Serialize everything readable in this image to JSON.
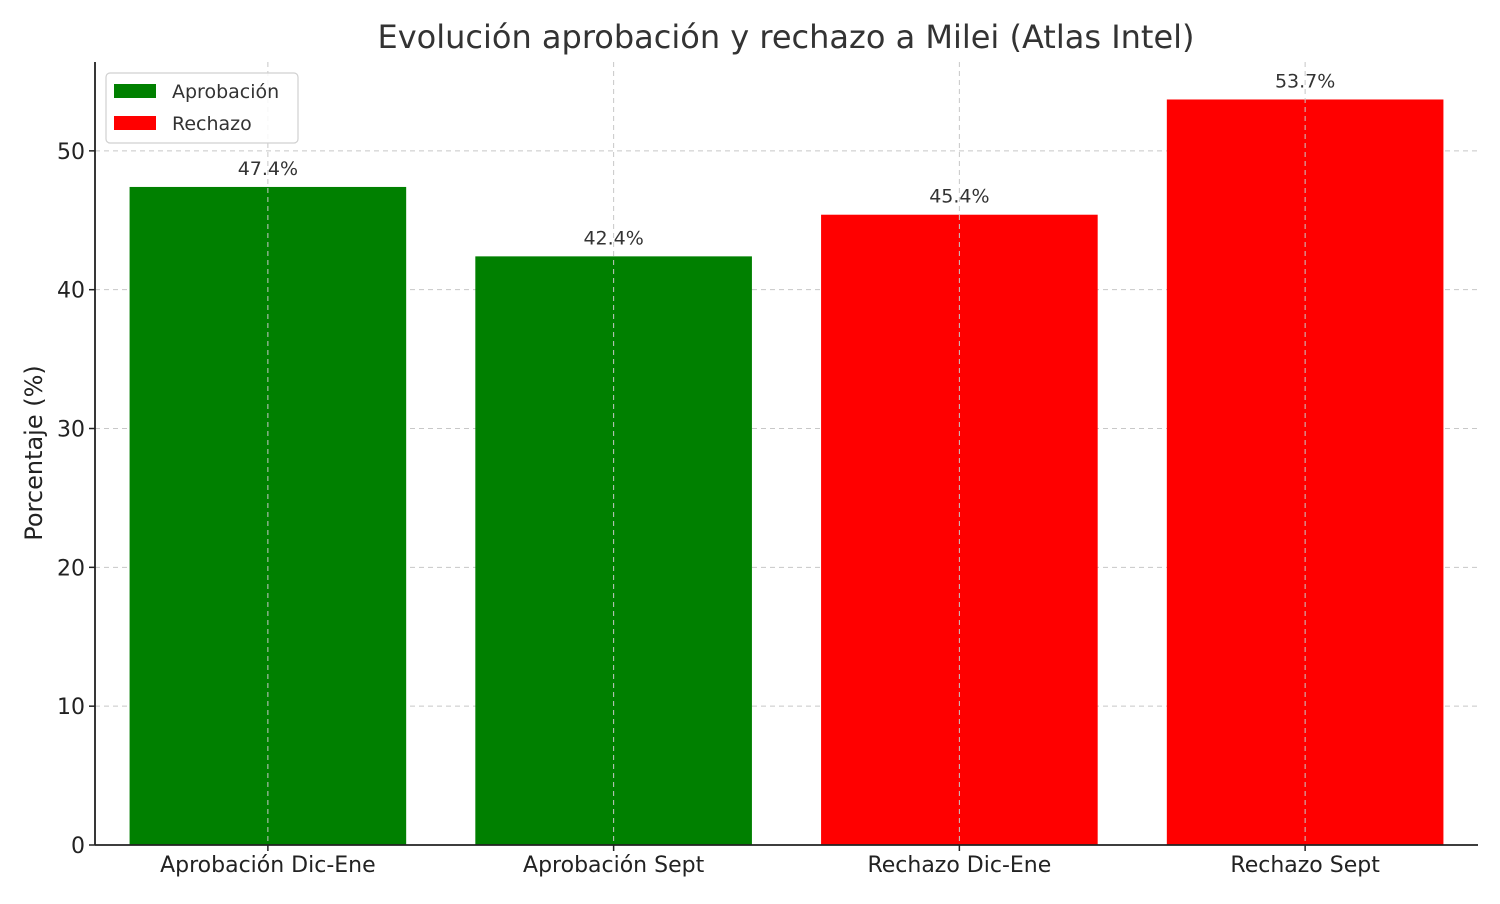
{
  "chart_data": {
    "type": "bar",
    "title": "Evolución aprobación y rechazo a Milei (Atlas Intel)",
    "xlabel": "",
    "ylabel": "Porcentaje (%)",
    "categories": [
      "Aprobación Dic-Ene",
      "Aprobación Sept",
      "Rechazo Dic-Ene",
      "Rechazo Sept"
    ],
    "values": [
      47.4,
      42.4,
      45.4,
      53.7
    ],
    "data_labels": [
      "47.4%",
      "42.4%",
      "45.4%",
      "53.7%"
    ],
    "bar_colors": [
      "#008000",
      "#008000",
      "#ff0000",
      "#ff0000"
    ],
    "yticks": [
      0,
      10,
      20,
      30,
      40,
      50
    ],
    "ylim": [
      0,
      56.4
    ],
    "grid": true,
    "legend": {
      "placement": "top-left",
      "entries": [
        {
          "label": "Aprobación",
          "color": "#008000"
        },
        {
          "label": "Rechazo",
          "color": "#ff0000"
        }
      ]
    }
  }
}
